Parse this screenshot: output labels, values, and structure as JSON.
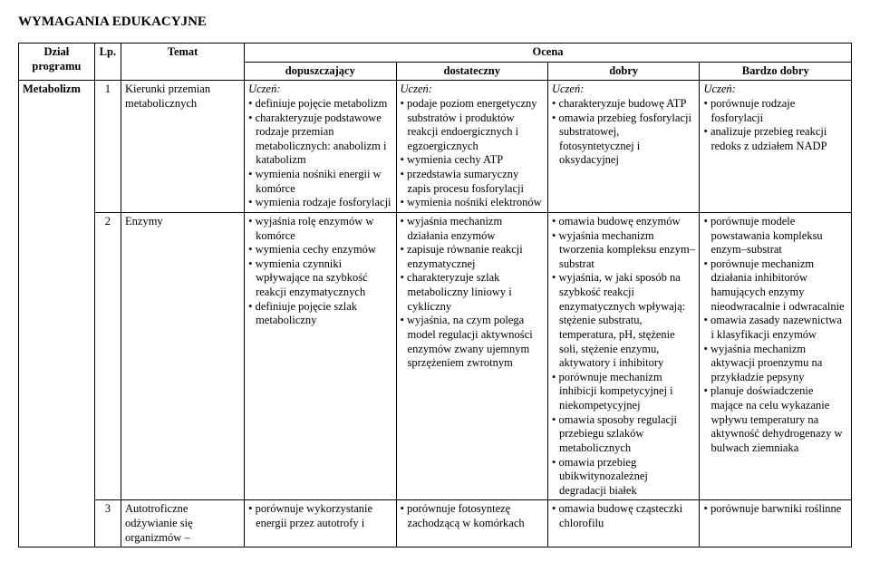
{
  "title": "WYMAGANIA EDUKACYJNE",
  "header": {
    "dzial": "Dział programu",
    "lp": "Lp.",
    "temat": "Temat",
    "ocena": "Ocena",
    "grades": [
      "dopuszczający",
      "dostateczny",
      "dobry",
      "Bardzo dobry"
    ]
  },
  "uczen": "Uczeń:",
  "dzial_name": "Metabolizm",
  "row1": {
    "lp": "1",
    "temat": "Kierunki przemian metabolicznych",
    "dop": [
      "• definiuje pojęcie metabolizm",
      "• charakteryzuje podstawowe rodzaje przemian metabolicznych: anabolizm i katabolizm",
      "• wymienia nośniki energii w komórce",
      "• wymienia rodzaje fosforylacji"
    ],
    "dst": [
      "• podaje poziom energetyczny substratów i produktów reakcji endoergicznych i egzoergicznych",
      "• wymienia cechy ATP",
      "• przedstawia sumaryczny zapis procesu fosforylacji",
      "• wymienia nośniki elektronów"
    ],
    "dob": [
      "• charakteryzuje budowę ATP",
      "• omawia przebieg fosforylacji substratowej, fotosyntetycznej i oksydacyjnej"
    ],
    "bdb": [
      "• porównuje rodzaje fosforylacji",
      "• analizuje przebieg reakcji redoks z udziałem NADP"
    ]
  },
  "row2": {
    "lp": "2",
    "temat": "Enzymy",
    "dop": [
      "• wyjaśnia rolę enzymów w komórce",
      "• wymienia cechy enzymów",
      "• wymienia czynniki wpływające na szybkość reakcji enzymatycznych",
      "• definiuje pojęcie szlak metaboliczny"
    ],
    "dst": [
      "• wyjaśnia mechanizm działania enzymów",
      "• zapisuje równanie reakcji enzymatycznej",
      "• charakteryzuje szlak metaboliczny liniowy i cykliczny",
      "• wyjaśnia, na czym polega model regulacji aktywności enzymów zwany ujemnym sprzężeniem zwrotnym"
    ],
    "dob": [
      "• omawia budowę enzymów",
      "• wyjaśnia mechanizm tworzenia kompleksu enzym–substrat",
      "• wyjaśnia, w jaki sposób na szybkość reakcji enzymatycznych wpływają: stężenie substratu, temperatura, pH, stężenie soli, stężenie enzymu, aktywatory i inhibitory",
      "• porównuje mechanizm inhibicji kompetycyjnej i niekompetycyjnej",
      "• omawia sposoby regulacji przebiegu szlaków metabolicznych",
      "• omawia przebieg ubikwitynozależnej degradacji białek"
    ],
    "bdb": [
      "• porównuje modele powstawania kompleksu enzym–substrat",
      "• porównuje mechanizm działania inhibitorów hamujących enzymy nieodwracalnie i odwracalnie",
      "• omawia zasady nazewnictwa i klasyfikacji enzymów",
      "• wyjaśnia mechanizm aktywacji proenzymu na przykładzie pepsyny",
      "• planuje doświadczenie mające na celu wykazanie wpływu temperatury na aktywność dehydrogenazy w bulwach ziemniaka"
    ]
  },
  "row3": {
    "lp": "3",
    "temat": "Autotroficzne odżywianie się organizmów –",
    "dop": "• porównuje wykorzystanie energii przez autotrofy i",
    "dst": "• porównuje fotosyntezę zachodzącą w komórkach",
    "dob": "• omawia budowę cząsteczki chlorofilu",
    "bdb": "• porównuje barwniki roślinne"
  }
}
